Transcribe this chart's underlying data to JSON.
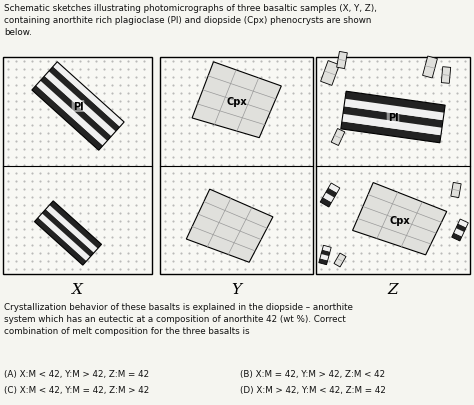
{
  "title_text": "Schematic sketches illustrating photomicrographs of three basaltic samples (X, Y, Z),\ncontaining anorthite rich plagioclase (Pl) and diopside (Cpx) phenocrysts are shown\nbelow.",
  "body_text": "Crystallization behavior of these basalts is explained in the diopside – anorthite\nsystem which has an eutectic at a composition of anorthite 42 (wt %). Correct\ncombination of melt composition for the three basalts is",
  "option_A": "(A) X:M < 42, Y:M > 42, Z:M = 42",
  "option_B": "(B) X:M = 42, Y:M > 42, Z:M < 42",
  "option_C": "(C) X:M < 42, Y:M = 42, Z:M > 42",
  "option_D": "(D) X:M > 42, Y:M < 42, Z:M = 42",
  "bg_color": "#f5f5f0",
  "dot_color": "#888888",
  "box_bg": "#f8f8f4",
  "stripe_dark": "#222222",
  "stripe_mid": "#777777",
  "stripe_light": "#f0f0f0",
  "cpx_fill": "#e0e0dc",
  "cpx_grid": "#999999",
  "text_color": "#111111"
}
